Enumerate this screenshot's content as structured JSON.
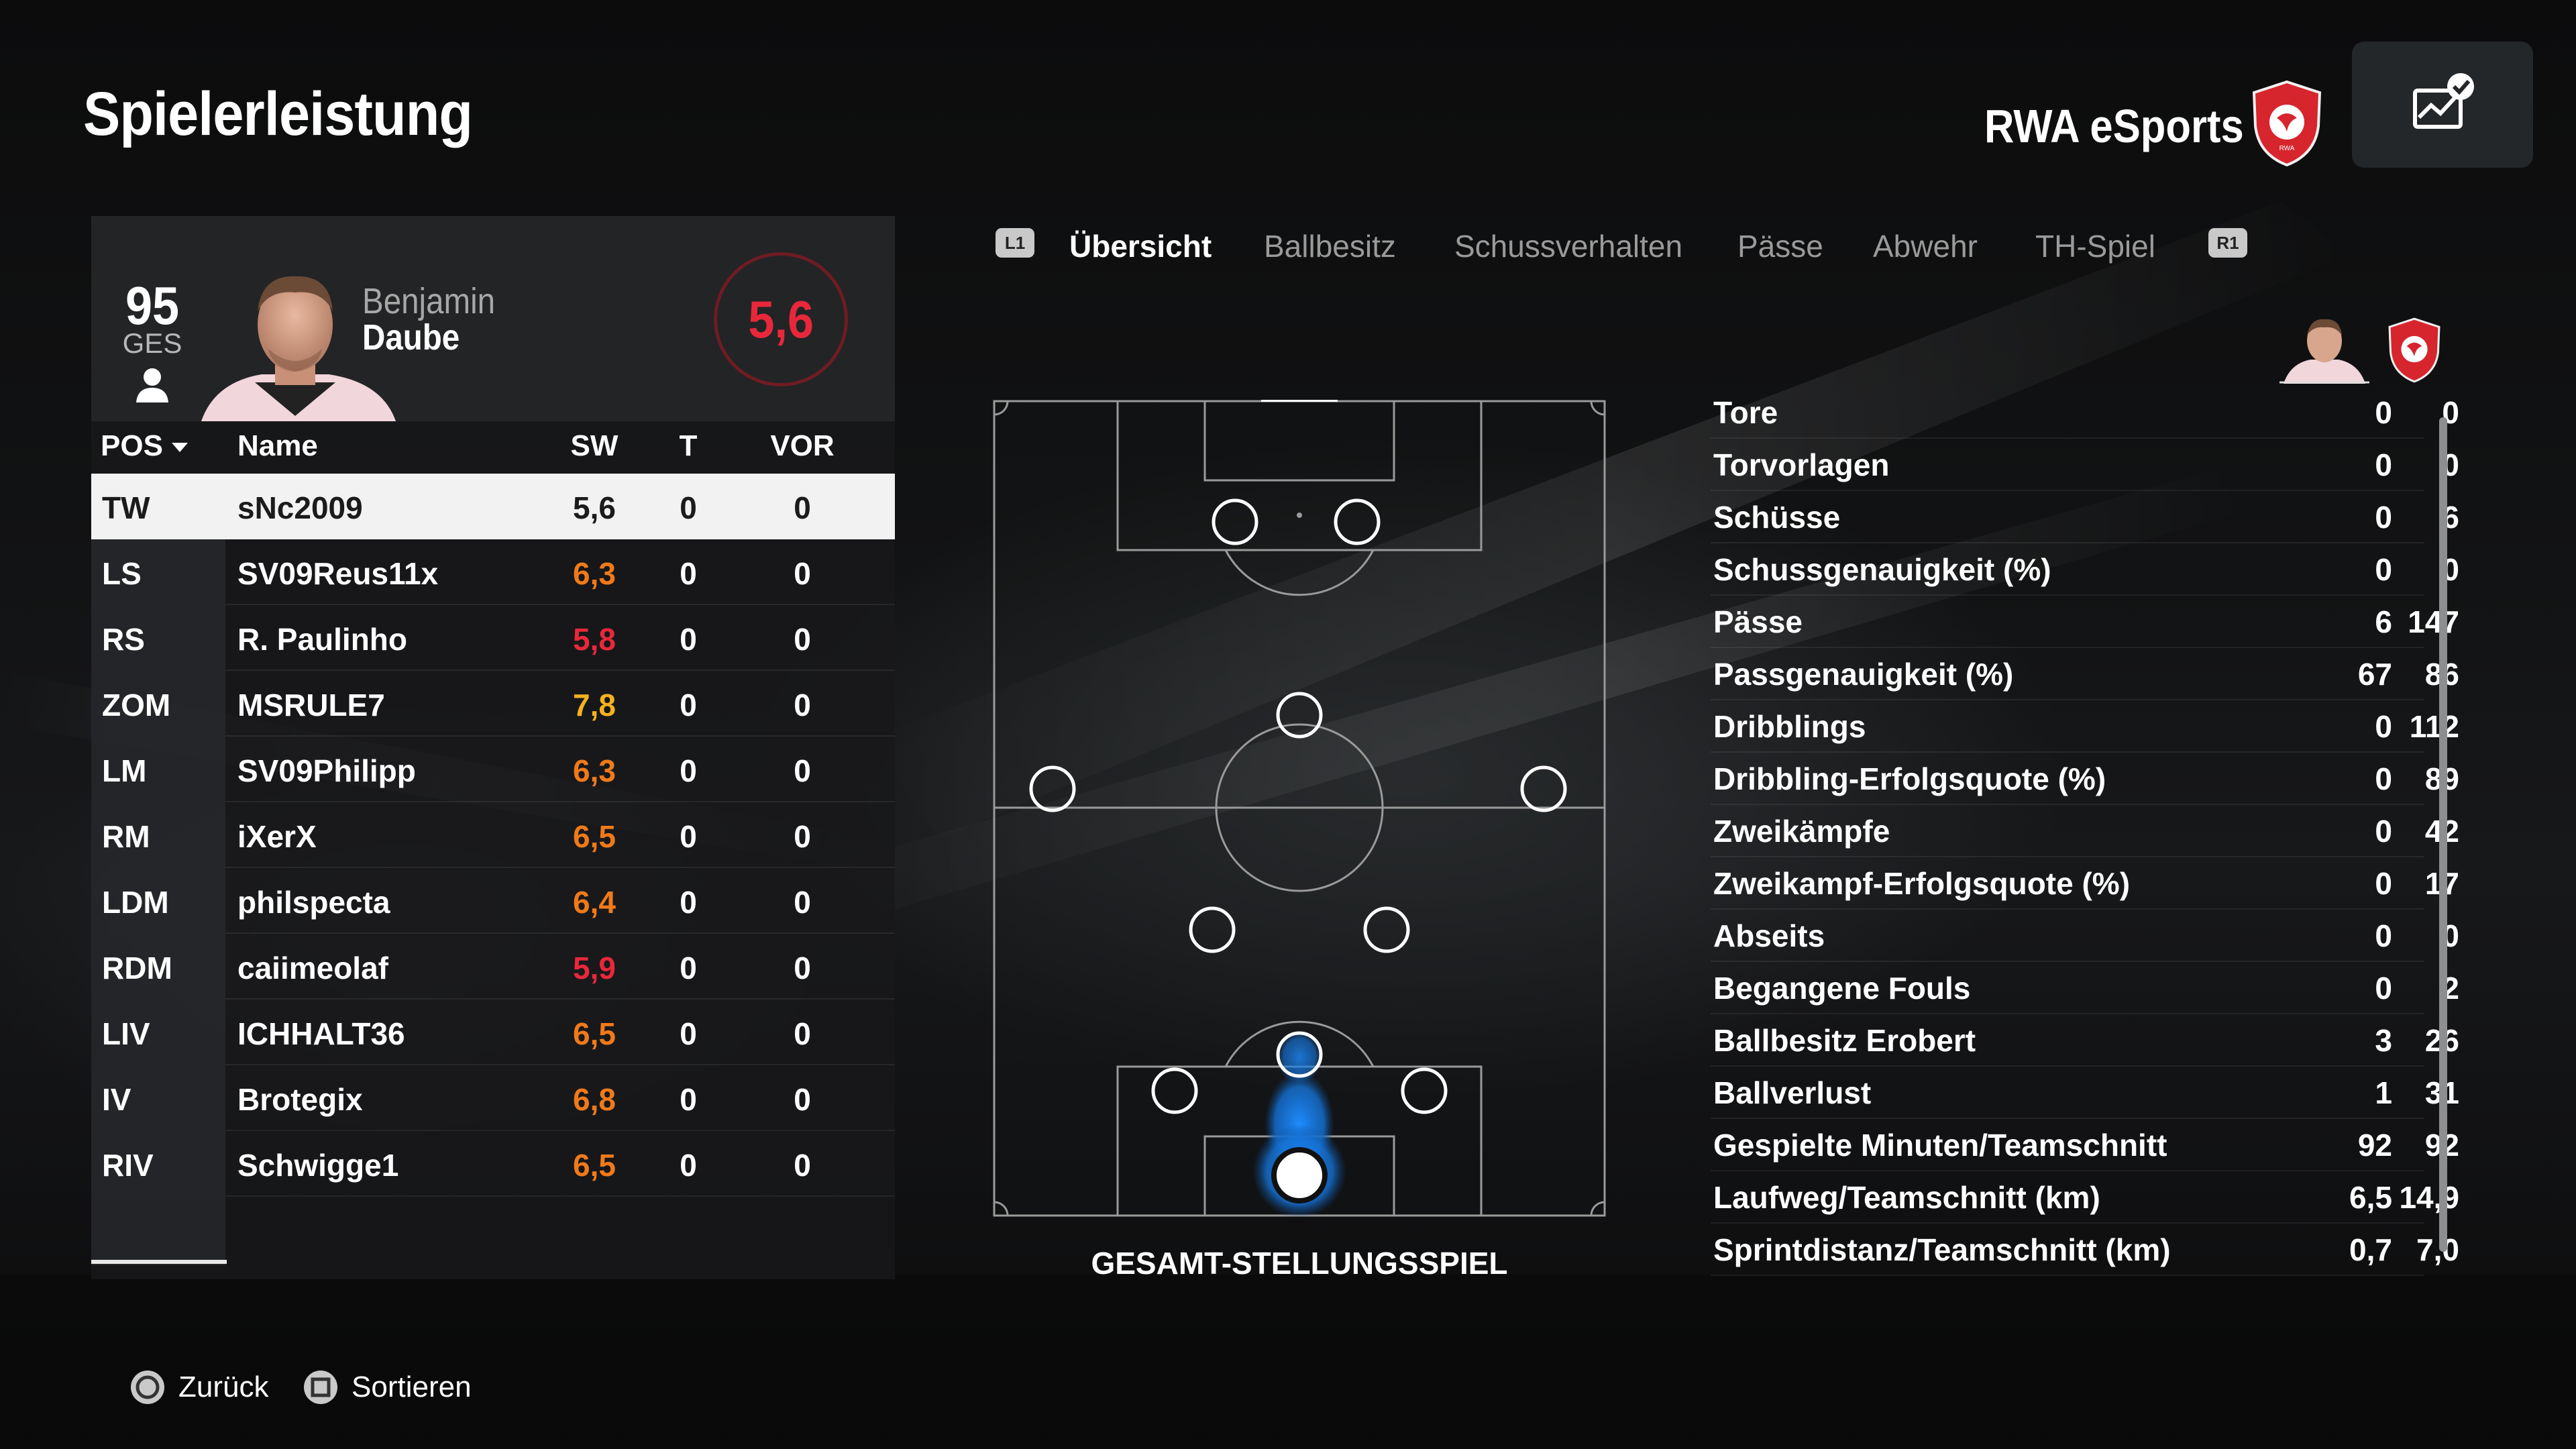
{
  "header": {
    "title": "Spielerleistung",
    "team_name": "RWA eSports"
  },
  "player_card": {
    "overall": "95",
    "overall_label": "GES",
    "first_name": "Benjamin",
    "last_name": "Daube",
    "rating": "5,6"
  },
  "table": {
    "headers": {
      "pos": "POS",
      "name": "Name",
      "sw": "SW",
      "t": "T",
      "vor": "VOR"
    },
    "rows": [
      {
        "pos": "TW",
        "name": "sNc2009",
        "sw": "5,6",
        "t": "0",
        "vor": "0",
        "color": "#1b1b1b"
      },
      {
        "pos": "LS",
        "name": "SV09Reus11x",
        "sw": "6,3",
        "t": "0",
        "vor": "0",
        "color": "#f07a1a"
      },
      {
        "pos": "RS",
        "name": "R. Paulinho",
        "sw": "5,8",
        "t": "0",
        "vor": "0",
        "color": "#e8283a"
      },
      {
        "pos": "ZOM",
        "name": "MSRULE7",
        "sw": "7,8",
        "t": "0",
        "vor": "0",
        "color": "#f5b21e"
      },
      {
        "pos": "LM",
        "name": "SV09Philipp",
        "sw": "6,3",
        "t": "0",
        "vor": "0",
        "color": "#f07a1a"
      },
      {
        "pos": "RM",
        "name": "iXerX",
        "sw": "6,5",
        "t": "0",
        "vor": "0",
        "color": "#f07a1a"
      },
      {
        "pos": "LDM",
        "name": "philspecta",
        "sw": "6,4",
        "t": "0",
        "vor": "0",
        "color": "#f07a1a"
      },
      {
        "pos": "RDM",
        "name": "caiimeolaf",
        "sw": "5,9",
        "t": "0",
        "vor": "0",
        "color": "#e8283a"
      },
      {
        "pos": "LIV",
        "name": "ICHHALT36",
        "sw": "6,5",
        "t": "0",
        "vor": "0",
        "color": "#f07a1a"
      },
      {
        "pos": "IV",
        "name": "Brotegix",
        "sw": "6,8",
        "t": "0",
        "vor": "0",
        "color": "#f07a1a"
      },
      {
        "pos": "RIV",
        "name": "Schwigge1",
        "sw": "6,5",
        "t": "0",
        "vor": "0",
        "color": "#f07a1a"
      }
    ]
  },
  "tabs": {
    "left_button": "L1",
    "right_button": "R1",
    "items": [
      "Übersicht",
      "Ballbesitz",
      "Schussverhalten",
      "Pässe",
      "Abwehr",
      "TH-Spiel"
    ]
  },
  "pitch": {
    "label": "GESAMT-STELLUNGSSPIEL"
  },
  "stats": [
    {
      "label": "Tore",
      "player": "0",
      "team": "0"
    },
    {
      "label": "Torvorlagen",
      "player": "0",
      "team": "0"
    },
    {
      "label": "Schüsse",
      "player": "0",
      "team": "6"
    },
    {
      "label": "Schussgenauigkeit (%)",
      "player": "0",
      "team": "0"
    },
    {
      "label": "Pässe",
      "player": "6",
      "team": "147"
    },
    {
      "label": "Passgenauigkeit (%)",
      "player": "67",
      "team": "86"
    },
    {
      "label": "Dribblings",
      "player": "0",
      "team": "112"
    },
    {
      "label": "Dribbling-Erfolgsquote (%)",
      "player": "0",
      "team": "89"
    },
    {
      "label": "Zweikämpfe",
      "player": "0",
      "team": "42"
    },
    {
      "label": "Zweikampf-Erfolgsquote (%)",
      "player": "0",
      "team": "17"
    },
    {
      "label": "Abseits",
      "player": "0",
      "team": "0"
    },
    {
      "label": "Begangene Fouls",
      "player": "0",
      "team": "2"
    },
    {
      "label": "Ballbesitz Erobert",
      "player": "3",
      "team": "26"
    },
    {
      "label": "Ballverlust",
      "player": "1",
      "team": "31"
    },
    {
      "label": "Gespielte Minuten/Teamschnitt",
      "player": "92",
      "team": "92"
    },
    {
      "label": "Laufweg/Teamschnitt (km)",
      "player": "6,5",
      "team": "14,9"
    },
    {
      "label": "Sprintdistanz/Teamschnitt (km)",
      "player": "0,7",
      "team": "7,0"
    }
  ],
  "footer": {
    "back": "Zurück",
    "sort": "Sortieren"
  },
  "colors": {
    "accent_red": "#e8283a",
    "orange": "#f07a1a",
    "yellow": "#f5b21e",
    "heat_blue": "#1e8cff"
  },
  "icons": [
    "person-icon",
    "share-stats-icon",
    "team-crest-icon",
    "circle-button-icon",
    "square-button-icon",
    "sort-arrow-icon"
  ]
}
